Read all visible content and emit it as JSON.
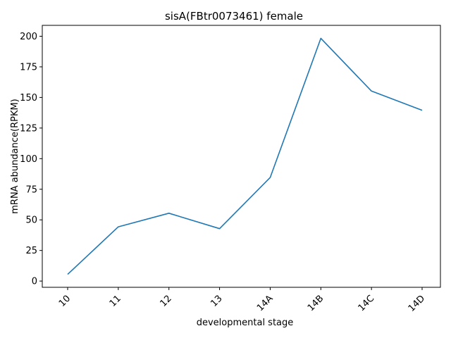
{
  "chart_data": {
    "type": "line",
    "title": "sisA(FBtr0073461) female",
    "xlabel": "developmental stage",
    "ylabel": "mRNA abundance(RPKM)",
    "categories": [
      "10",
      "11",
      "12",
      "13",
      "14A",
      "14B",
      "14C",
      "14D"
    ],
    "series": [
      {
        "values": [
          5.5,
          44.3,
          55.4,
          42.8,
          84.6,
          198.3,
          155.2,
          139.5
        ],
        "color": "#1f77b4"
      }
    ],
    "ylim": [
      -5.1,
      208.9
    ],
    "yticks": [
      0,
      25,
      50,
      75,
      100,
      125,
      150,
      175,
      200
    ],
    "grid": false,
    "legend": "none",
    "xtick_rotation": 45
  }
}
